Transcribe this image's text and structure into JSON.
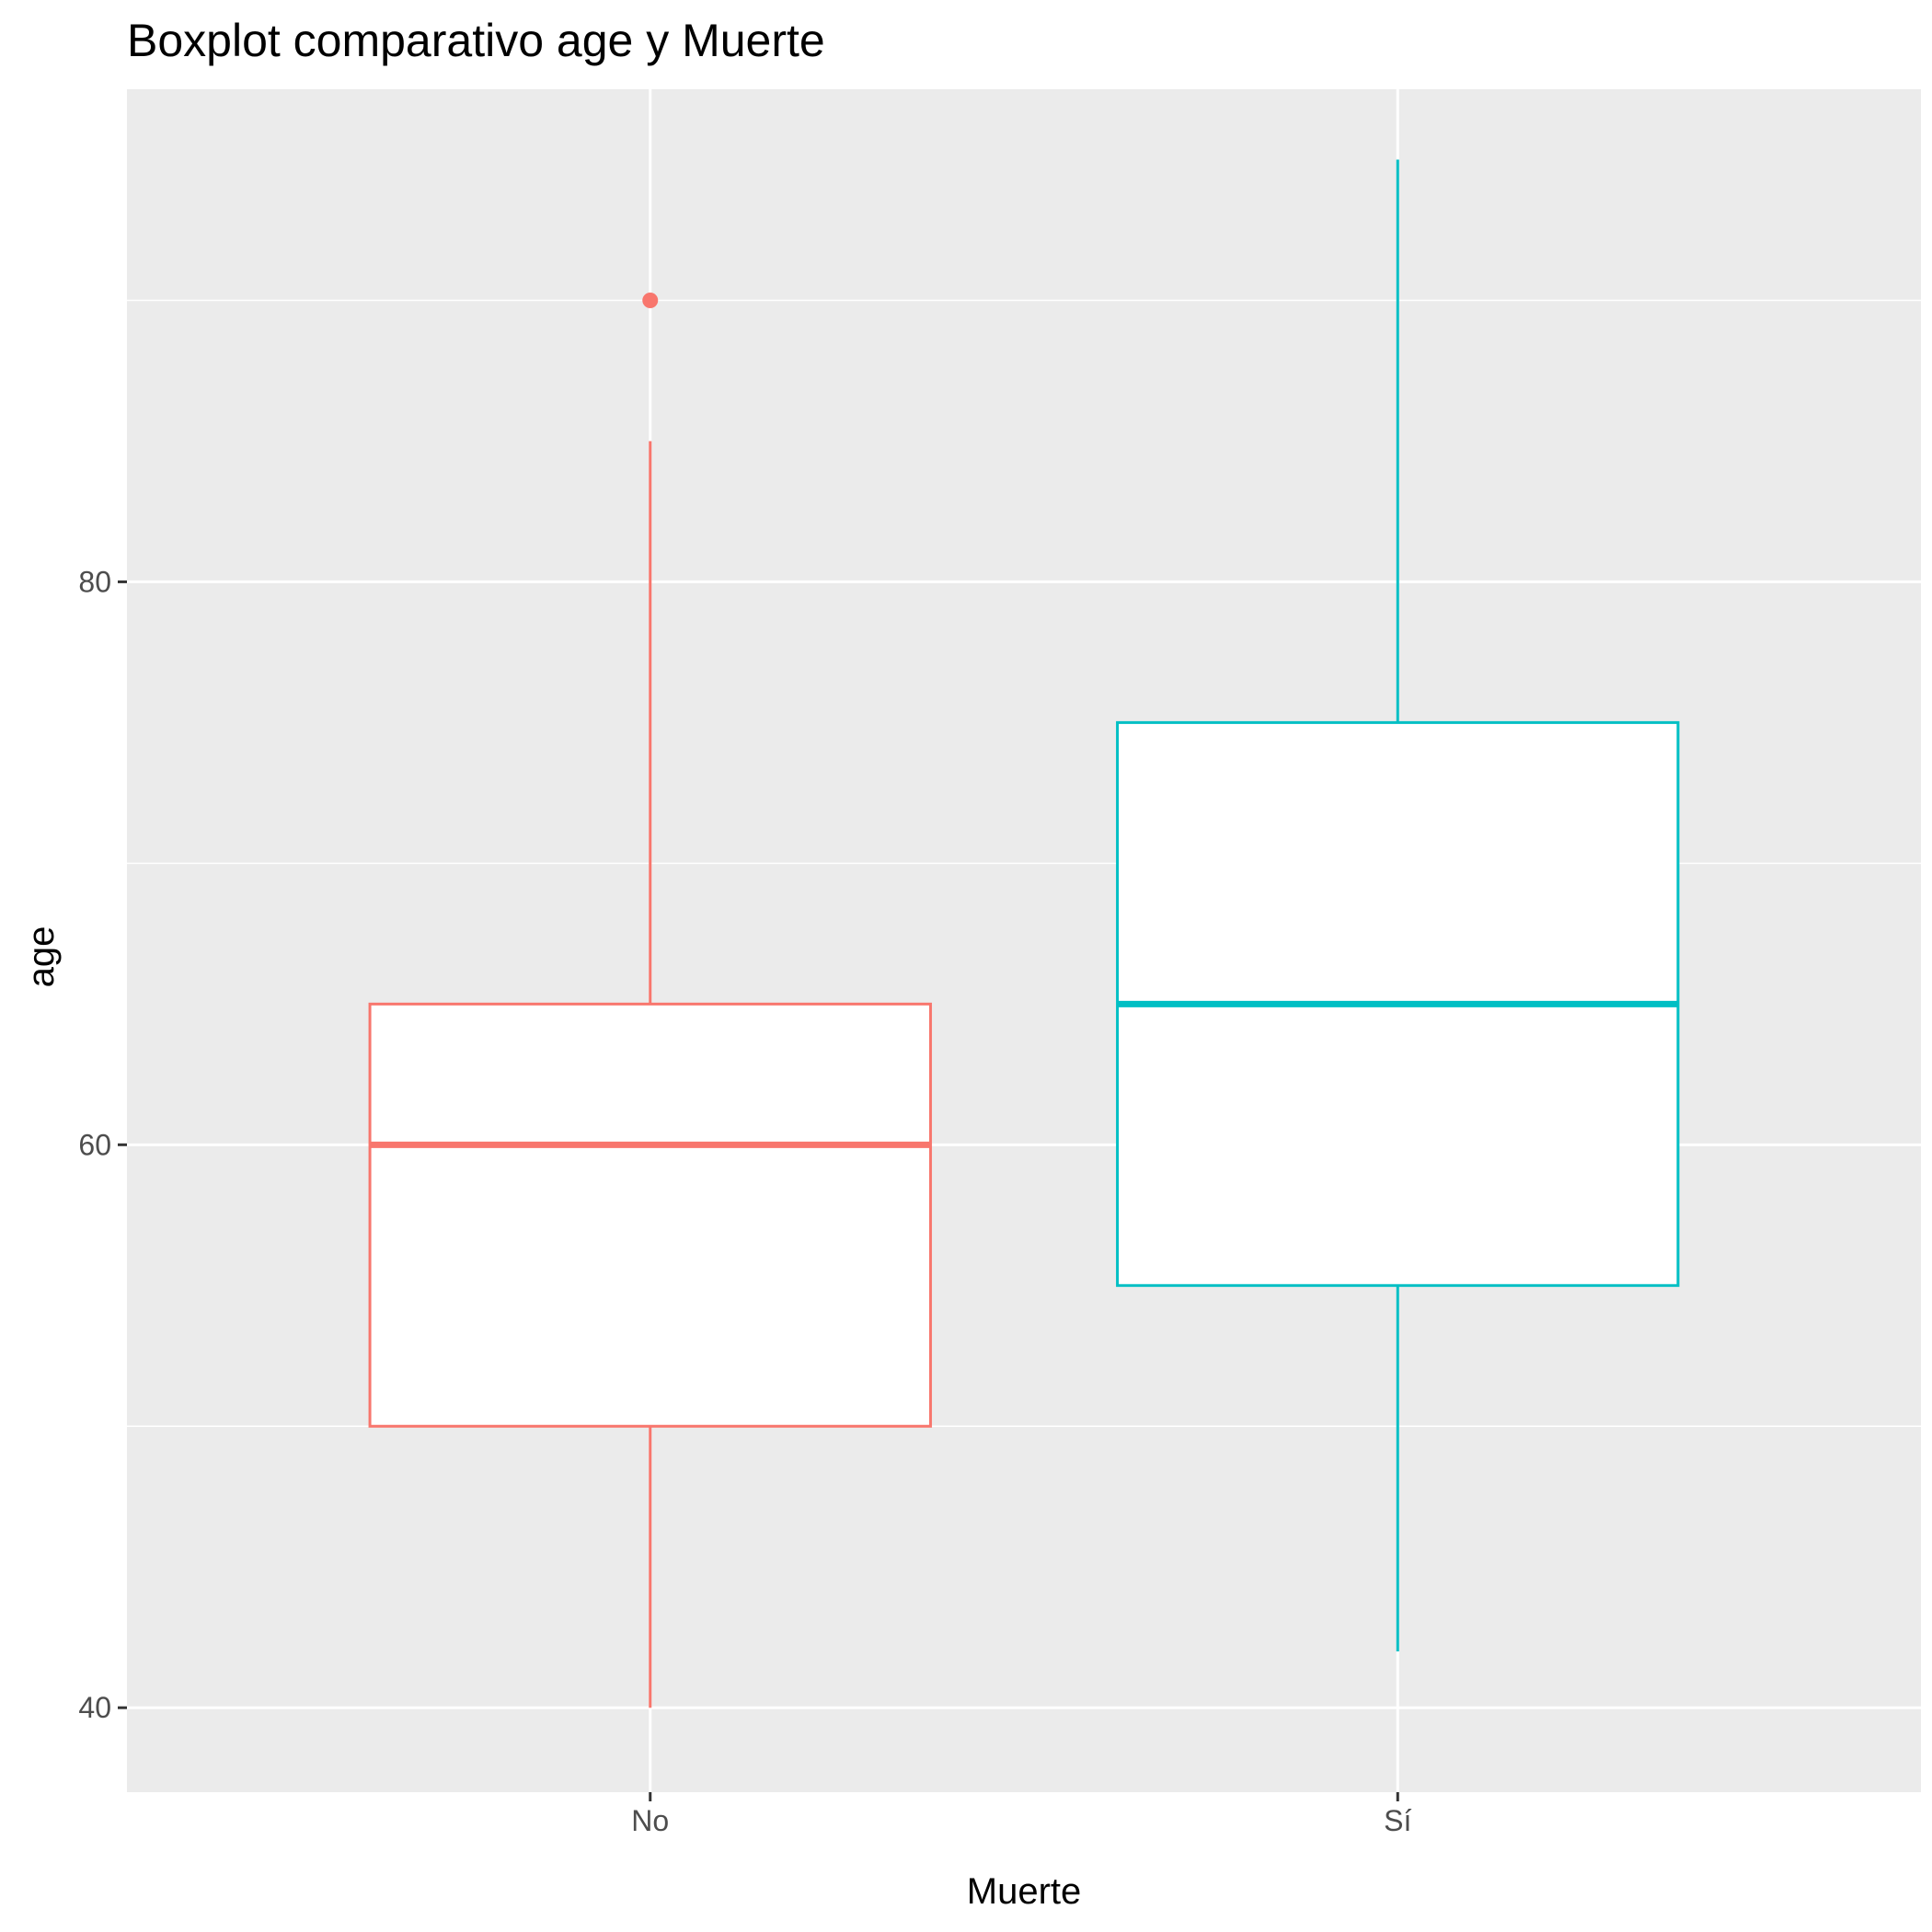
{
  "chart_data": {
    "type": "boxplot",
    "title": "Boxplot comparativo age y Muerte",
    "xlabel": "Muerte",
    "ylabel": "age",
    "ylim": [
      37.0,
      97.5
    ],
    "y_ticks": [
      40,
      60,
      80
    ],
    "y_minor_ticks": [
      50,
      70,
      90
    ],
    "categories": [
      "No",
      "Sí"
    ],
    "series": [
      {
        "category": "No",
        "color": "#F8766D",
        "whisker_low": 40,
        "q1": 50,
        "median": 60,
        "q3": 65,
        "whisker_high": 85,
        "outliers": [
          90
        ]
      },
      {
        "category": "Sí",
        "color": "#00BFC4",
        "whisker_low": 42,
        "q1": 55,
        "median": 65,
        "q3": 75,
        "whisker_high": 95,
        "outliers": []
      }
    ],
    "panel_background": "#EBEBEB",
    "grid_color": "#FFFFFF",
    "grid": true,
    "legend": "none"
  }
}
